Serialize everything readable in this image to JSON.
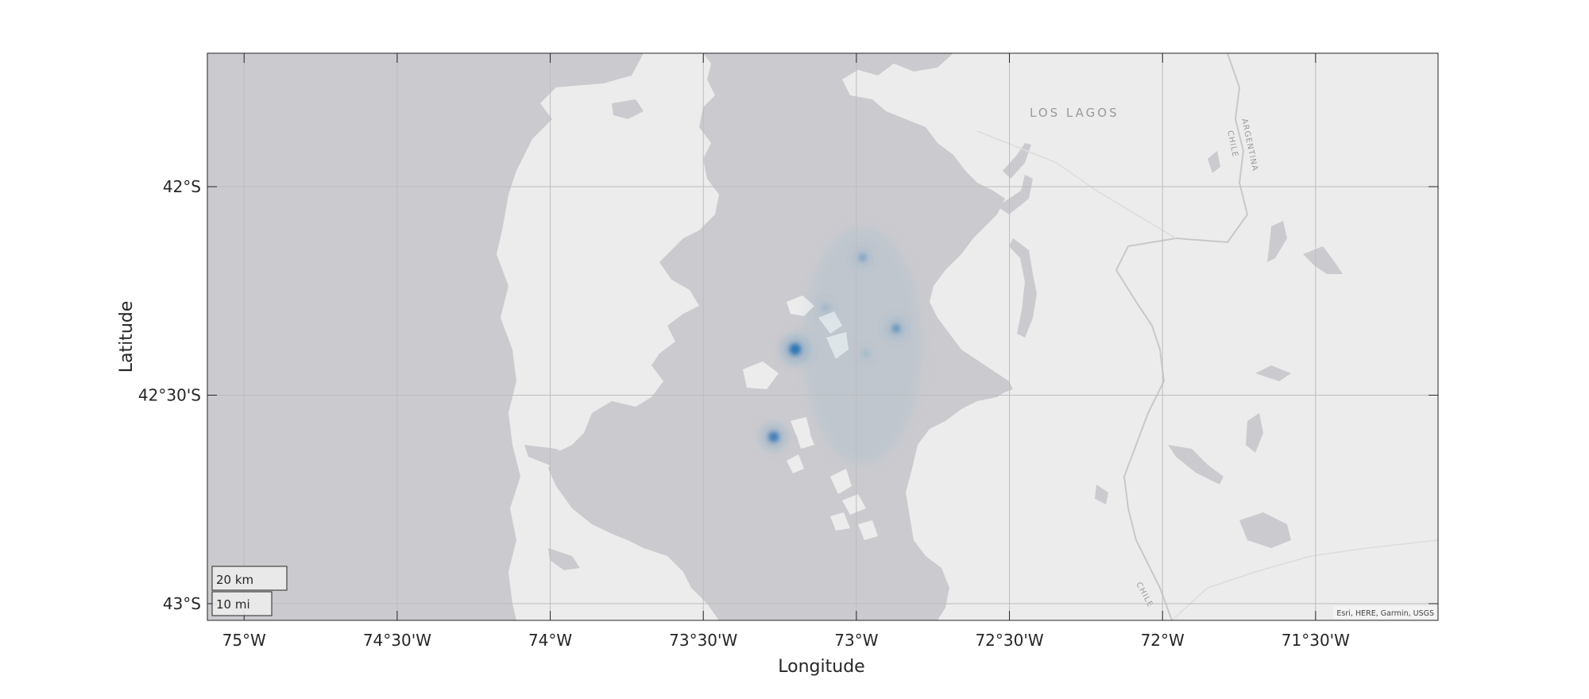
{
  "map": {
    "xlabel": "Longitude",
    "ylabel": "Latitude",
    "lon_range": [
      -75.12,
      -71.1
    ],
    "lat_range": [
      -43.04,
      -41.68
    ],
    "lon_ticks": [
      {
        "value": -75.0,
        "label": "75°W"
      },
      {
        "value": -74.5,
        "label": "74°30'W"
      },
      {
        "value": -74.0,
        "label": "74°W"
      },
      {
        "value": -73.5,
        "label": "73°30'W"
      },
      {
        "value": -73.0,
        "label": "73°W"
      },
      {
        "value": -72.5,
        "label": "72°30'W"
      },
      {
        "value": -72.0,
        "label": "72°W"
      },
      {
        "value": -71.5,
        "label": "71°30'W"
      }
    ],
    "lat_ticks": [
      {
        "value": -42.0,
        "label": "42°S"
      },
      {
        "value": -42.5,
        "label": "42°30'S"
      },
      {
        "value": -43.0,
        "label": "43°S"
      }
    ],
    "grid": true,
    "basemap": "light gray canvas",
    "place_labels": {
      "region": "LOS LAGOS",
      "argentina": "ARGENTINA",
      "chile_north": "CHILE",
      "chile_south": "CHILE"
    },
    "scale_bar": {
      "km_label": "20 km",
      "mi_label": "10 mi"
    },
    "attribution": "Esri, HERE, Garmin, USGS",
    "density_color": "#1f6fb4",
    "density_hotspots": [
      {
        "lon": -73.2,
        "lat": -42.39,
        "intensity": 1.0
      },
      {
        "lon": -73.27,
        "lat": -42.6,
        "intensity": 0.85
      },
      {
        "lon": -72.87,
        "lat": -42.34,
        "intensity": 0.55
      },
      {
        "lon": -72.98,
        "lat": -42.17,
        "intensity": 0.4
      },
      {
        "lon": -73.1,
        "lat": -42.29,
        "intensity": 0.2
      },
      {
        "lon": -72.97,
        "lat": -42.4,
        "intensity": 0.15
      }
    ],
    "colors": {
      "water": "#cbcbcf",
      "land": "#ececec",
      "grid": "#bdbdbd",
      "frame": "#262626"
    }
  }
}
